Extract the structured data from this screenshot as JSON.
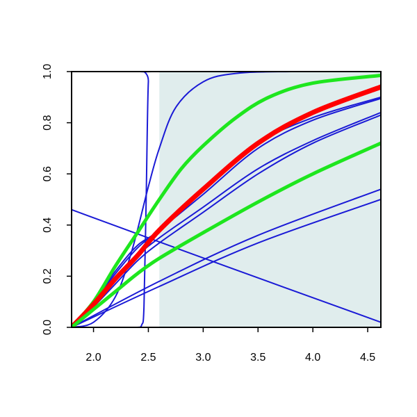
{
  "chart_data": {
    "type": "line",
    "title": "",
    "xlabel": "",
    "ylabel": "",
    "xlim": [
      1.8,
      4.62
    ],
    "ylim": [
      0,
      1.0
    ],
    "xticks": [
      "2.0",
      "2.5",
      "3.0",
      "3.5",
      "4.0",
      "4.5"
    ],
    "yticks": [
      "0.0",
      "0.2",
      "0.4",
      "0.6",
      "0.8",
      "1.0"
    ],
    "shaded_region": {
      "x_from": 2.6,
      "x_to": 4.62,
      "color": "#e0eded"
    },
    "colors": {
      "blue": "#1a1ad6",
      "red": "#ff0000",
      "green": "#1ee61e",
      "frame": "#000000"
    },
    "grid": false,
    "series": [
      {
        "color": "blue",
        "width": 2,
        "points": [
          [
            1.8,
            0
          ],
          [
            2.3,
            0
          ],
          [
            2.4,
            0
          ],
          [
            2.44,
            0.01
          ],
          [
            2.46,
            0.08
          ],
          [
            2.48,
            0.5
          ],
          [
            2.5,
            0.96
          ],
          [
            2.53,
            1.0
          ],
          [
            4.62,
            1.0
          ]
        ]
      },
      {
        "color": "blue",
        "width": 2,
        "points": [
          [
            1.8,
            0
          ],
          [
            2.0,
            0.02
          ],
          [
            2.2,
            0.12
          ],
          [
            2.35,
            0.3
          ],
          [
            2.5,
            0.55
          ],
          [
            2.6,
            0.7
          ],
          [
            2.75,
            0.86
          ],
          [
            3.0,
            0.96
          ],
          [
            3.3,
            0.993
          ],
          [
            3.8,
            1.0
          ],
          [
            4.62,
            1.0
          ]
        ]
      },
      {
        "color": "blue",
        "width": 2,
        "points": [
          [
            1.8,
            0
          ],
          [
            2.0,
            0.1
          ],
          [
            2.2,
            0.22
          ],
          [
            2.4,
            0.32
          ],
          [
            2.6,
            0.38
          ],
          [
            3.0,
            0.54
          ],
          [
            3.5,
            0.72
          ],
          [
            4.0,
            0.82
          ],
          [
            4.62,
            0.9
          ]
        ]
      },
      {
        "color": "blue",
        "width": 2,
        "points": [
          [
            1.8,
            0
          ],
          [
            2.0,
            0.1
          ],
          [
            2.2,
            0.21
          ],
          [
            2.4,
            0.31
          ],
          [
            2.6,
            0.38
          ],
          [
            3.0,
            0.52
          ],
          [
            3.5,
            0.7
          ],
          [
            4.0,
            0.81
          ],
          [
            4.62,
            0.895
          ]
        ]
      },
      {
        "color": "blue",
        "width": 2,
        "points": [
          [
            1.8,
            0
          ],
          [
            2.0,
            0.09
          ],
          [
            2.2,
            0.19
          ],
          [
            2.4,
            0.28
          ],
          [
            2.6,
            0.35
          ],
          [
            3.0,
            0.47
          ],
          [
            3.5,
            0.62
          ],
          [
            4.0,
            0.73
          ],
          [
            4.62,
            0.84
          ]
        ]
      },
      {
        "color": "blue",
        "width": 2,
        "points": [
          [
            1.8,
            0
          ],
          [
            2.0,
            0.08
          ],
          [
            2.2,
            0.17
          ],
          [
            2.4,
            0.26
          ],
          [
            2.6,
            0.33
          ],
          [
            3.0,
            0.45
          ],
          [
            3.5,
            0.6
          ],
          [
            4.0,
            0.72
          ],
          [
            4.62,
            0.83
          ]
        ]
      },
      {
        "color": "blue",
        "width": 2,
        "points": [
          [
            1.8,
            0
          ],
          [
            2.6,
            0.18
          ],
          [
            3.5,
            0.36
          ],
          [
            4.62,
            0.54
          ]
        ]
      },
      {
        "color": "blue",
        "width": 2,
        "points": [
          [
            1.8,
            0
          ],
          [
            2.6,
            0.16
          ],
          [
            3.5,
            0.33
          ],
          [
            4.62,
            0.5
          ]
        ]
      },
      {
        "color": "blue",
        "width": 2,
        "points": [
          [
            1.8,
            0.46
          ],
          [
            3.2,
            0.24
          ],
          [
            4.62,
            0.02
          ]
        ]
      },
      {
        "color": "green",
        "width": 5,
        "points": [
          [
            1.8,
            0
          ],
          [
            2.0,
            0.1
          ],
          [
            2.2,
            0.24
          ],
          [
            2.4,
            0.37
          ],
          [
            2.6,
            0.5
          ],
          [
            2.8,
            0.62
          ],
          [
            3.0,
            0.71
          ],
          [
            3.3,
            0.82
          ],
          [
            3.6,
            0.9
          ],
          [
            4.0,
            0.955
          ],
          [
            4.62,
            0.985
          ]
        ]
      },
      {
        "color": "red",
        "width": 7,
        "points": [
          [
            1.8,
            0
          ],
          [
            2.0,
            0.09
          ],
          [
            2.2,
            0.19
          ],
          [
            2.4,
            0.28
          ],
          [
            2.6,
            0.38
          ],
          [
            3.0,
            0.54
          ],
          [
            3.5,
            0.72
          ],
          [
            4.0,
            0.84
          ],
          [
            4.62,
            0.94
          ]
        ]
      },
      {
        "color": "green",
        "width": 5,
        "points": [
          [
            1.8,
            0
          ],
          [
            2.0,
            0.07
          ],
          [
            2.2,
            0.14
          ],
          [
            2.4,
            0.21
          ],
          [
            2.6,
            0.27
          ],
          [
            3.0,
            0.37
          ],
          [
            3.5,
            0.49
          ],
          [
            4.0,
            0.6
          ],
          [
            4.62,
            0.72
          ]
        ]
      }
    ]
  }
}
